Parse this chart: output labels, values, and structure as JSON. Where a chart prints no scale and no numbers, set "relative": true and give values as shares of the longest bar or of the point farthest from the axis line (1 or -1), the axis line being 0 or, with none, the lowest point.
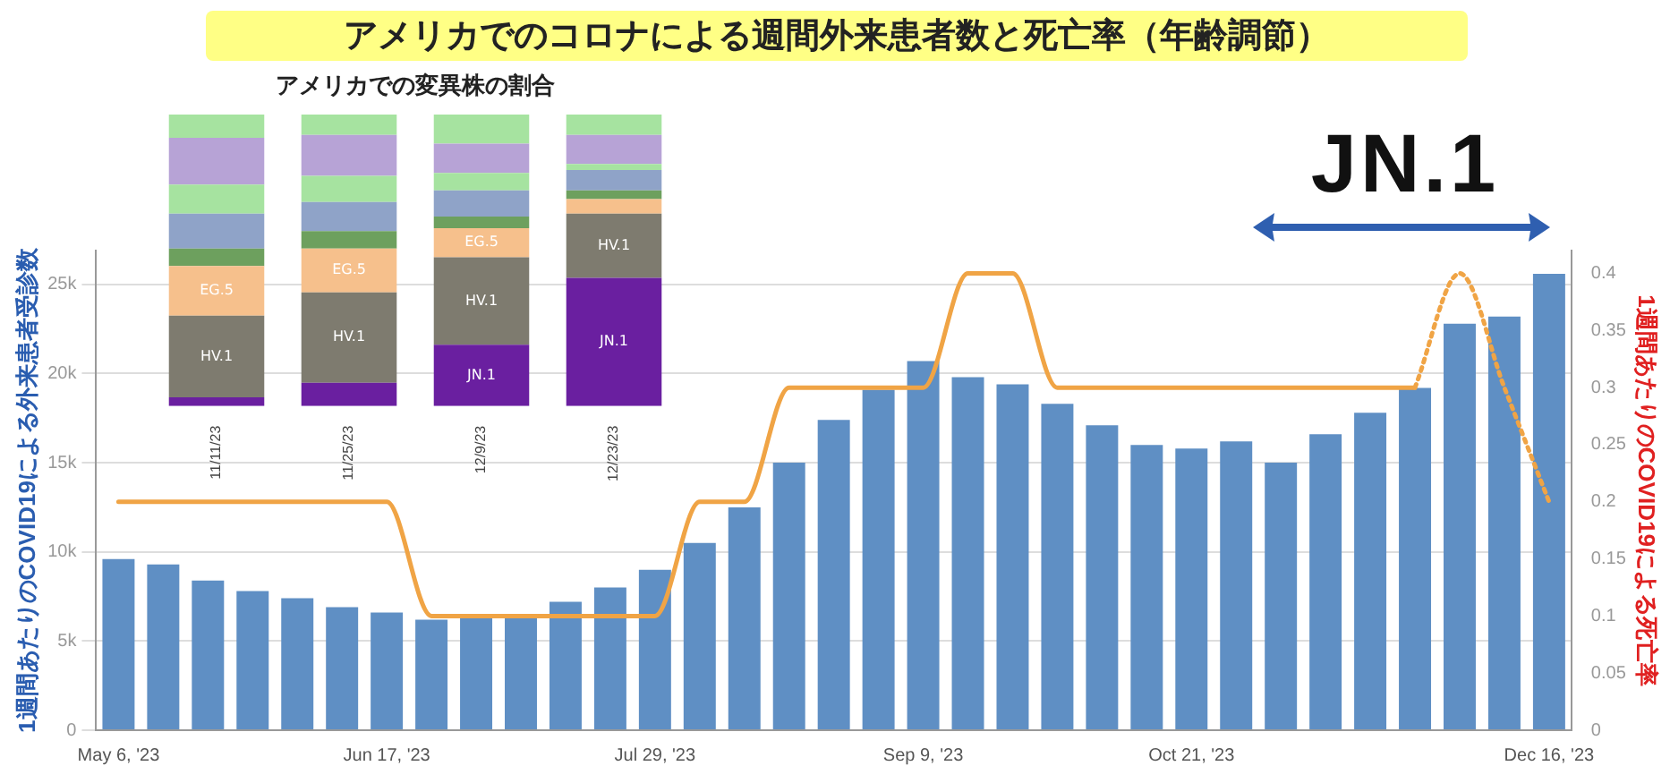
{
  "chart_data": [
    {
      "type": "bar",
      "title": "アメリカでのコロナによる週間外来患者数と死亡率（年齢調節）",
      "ylabel": "1週間あたりのCOVID19による外来患者受診数",
      "y2label": "1週間あたりのCOVID19による死亡率",
      "annotations": [
        "JN.1"
      ],
      "categories": [
        "May 6, '23",
        null,
        null,
        null,
        null,
        null,
        "Jun 17, '23",
        null,
        null,
        null,
        null,
        null,
        "Jul 29, '23",
        null,
        null,
        null,
        null,
        null,
        "Sep 9, '23",
        null,
        null,
        null,
        null,
        null,
        "Oct 21, '23",
        null,
        null,
        null,
        null,
        null,
        null,
        null,
        "Dec 16, '23"
      ],
      "series": [
        {
          "type": "bar",
          "color": "#5f8fc4",
          "values": [
            9600,
            9300,
            8400,
            7800,
            7400,
            6900,
            6600,
            6200,
            6300,
            6300,
            7200,
            8000,
            9000,
            10500,
            12500,
            15000,
            17400,
            19100,
            20700,
            19800,
            19400,
            18300,
            17100,
            16000,
            15800,
            16200,
            15000,
            16600,
            17800,
            19200,
            22800,
            23200,
            25600
          ]
        },
        {
          "type": "line",
          "axis": "y2",
          "color": "#f0a445",
          "line_style": "solid",
          "values": [
            0.2,
            0.2,
            0.2,
            0.2,
            0.2,
            0.2,
            0.2,
            0.1,
            0.1,
            0.1,
            0.1,
            0.1,
            0.1,
            0.2,
            0.2,
            0.3,
            0.3,
            0.3,
            0.3,
            0.4,
            0.4,
            0.3,
            0.3,
            0.3,
            0.3,
            0.3,
            0.3,
            0.3,
            0.3,
            0.3,
            null,
            null,
            null
          ]
        },
        {
          "type": "line",
          "axis": "y2",
          "color": "#f0a445",
          "line_style": "dotted",
          "values": [
            null,
            null,
            null,
            null,
            null,
            null,
            null,
            null,
            null,
            null,
            null,
            null,
            null,
            null,
            null,
            null,
            null,
            null,
            null,
            null,
            null,
            null,
            null,
            null,
            null,
            null,
            null,
            null,
            null,
            0.3,
            0.4,
            0.3,
            0.2
          ]
        }
      ],
      "marker": "none",
      "ylim": [
        0,
        26900
      ],
      "yticks": [
        0,
        {
          "value": 5000,
          "label": "5k"
        },
        {
          "value": 10000,
          "label": "10k"
        },
        {
          "value": 15000,
          "label": "15k"
        },
        {
          "value": 20000,
          "label": "20k"
        },
        {
          "value": 25000,
          "label": "25k"
        }
      ],
      "y2lim": [
        0,
        0.42
      ],
      "y2ticks": [
        0,
        0.05,
        0.1,
        0.15,
        0.2,
        0.25,
        0.3,
        0.35,
        0.4
      ],
      "grid": "y",
      "legend": false
    },
    {
      "type": "bar",
      "title": "アメリカでの変異株の割合",
      "stacked": true,
      "relative": true,
      "tick_labels": "x",
      "legend": false,
      "categories": [
        "11/11/23",
        "11/25/23",
        "12/9/23",
        "12/23/23"
      ],
      "series": [
        {
          "name": "JN.1",
          "color": "#6a1fa0",
          "values": [
            0.03,
            0.08,
            0.21,
            0.44
          ]
        },
        {
          "name": "HV.1",
          "color": "#7e7b6f",
          "values": [
            0.28,
            0.31,
            0.3,
            0.22
          ]
        },
        {
          "name": "EG.5",
          "color": "#f6c08c",
          "values": [
            0.17,
            0.15,
            0.1,
            0.05
          ]
        },
        {
          "color": "#6da05e",
          "values": [
            0.06,
            0.06,
            0.04,
            0.03
          ]
        },
        {
          "color": "#8fa3c8",
          "values": [
            0.12,
            0.1,
            0.09,
            0.07
          ]
        },
        {
          "color": "#a6e3a0",
          "values": [
            0.1,
            0.09,
            0.06,
            0.02
          ]
        },
        {
          "color": "#b7a3d6",
          "values": [
            0.16,
            0.14,
            0.1,
            0.1
          ]
        },
        {
          "color": "#a6e3a0",
          "values": [
            0.08,
            0.07,
            0.1,
            0.07
          ]
        }
      ]
    }
  ]
}
